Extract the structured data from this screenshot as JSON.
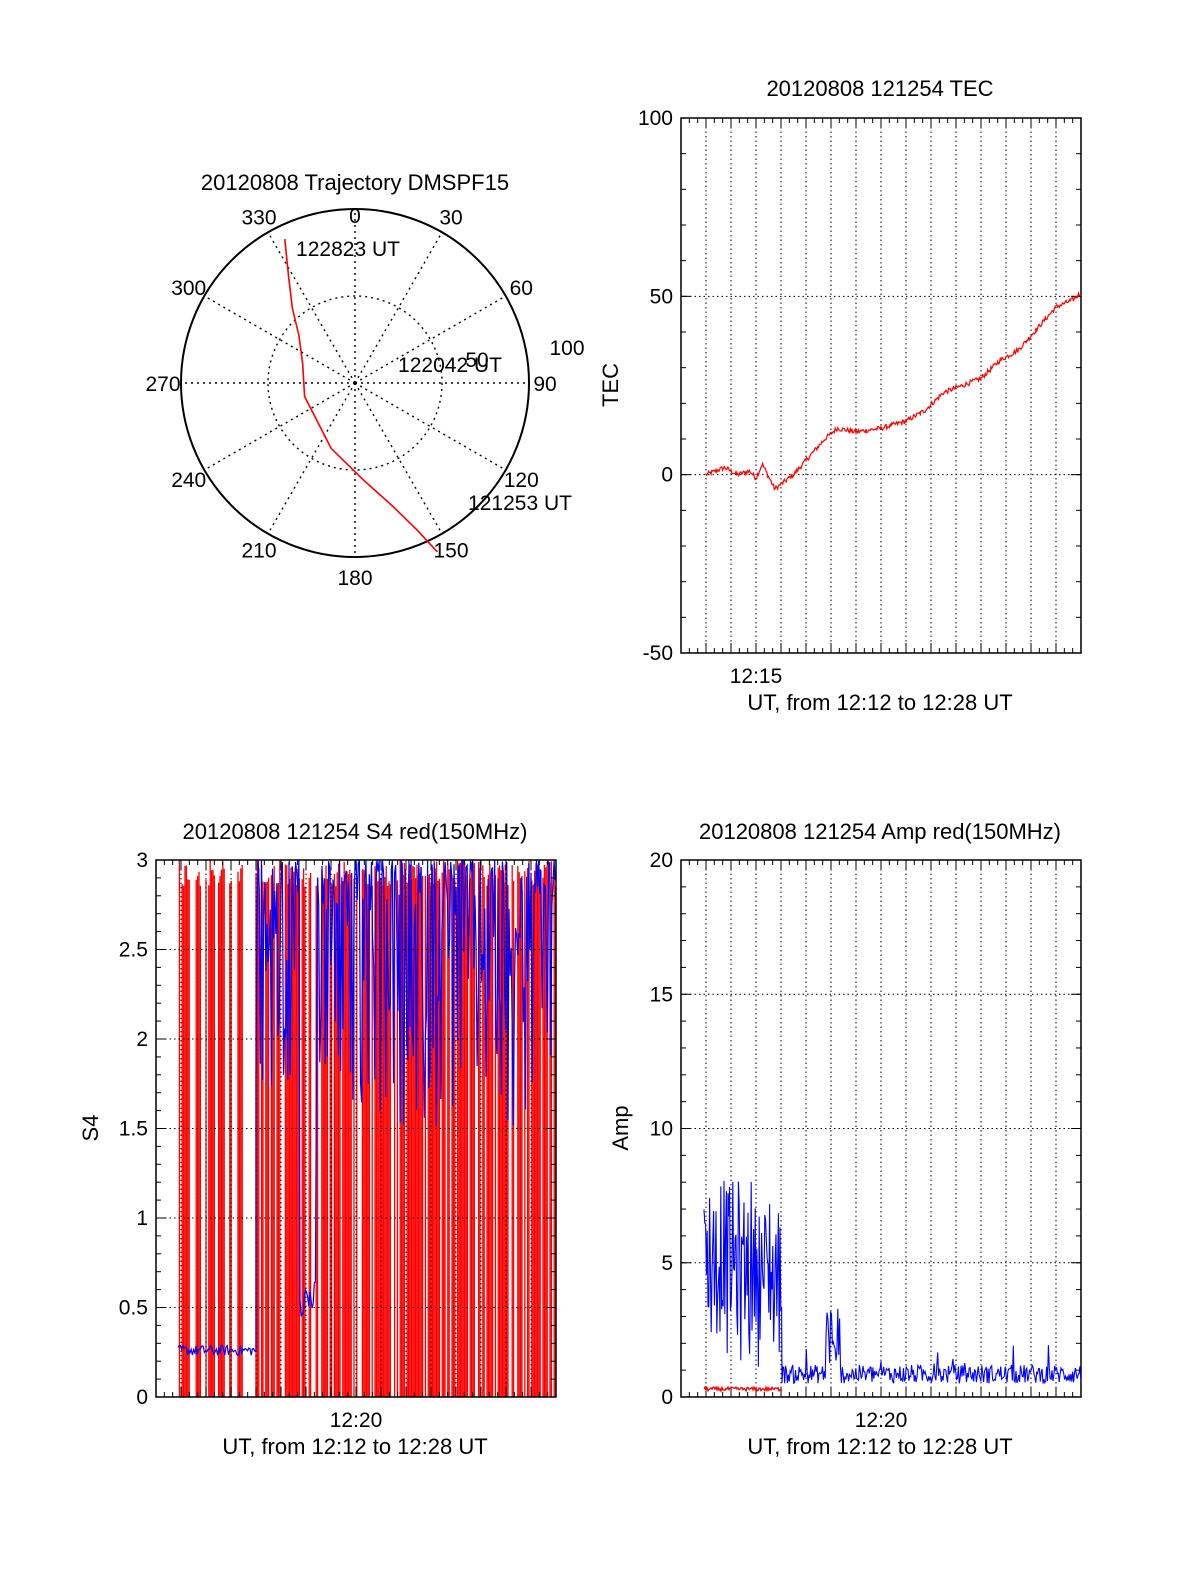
{
  "chart_data": [
    {
      "type": "polar",
      "title": "20120808 Trajectory DMSPF15",
      "angle_labels": [
        "0",
        "30",
        "60",
        "90",
        "120",
        "150",
        "180",
        "210",
        "240",
        "270",
        "300",
        "330"
      ],
      "radial_labels": [
        "50",
        "100"
      ],
      "rmax": 100,
      "grid": true,
      "series": [
        {
          "color": "#ff0000",
          "points": [
            [
              334,
              92
            ],
            [
              328,
              72
            ],
            [
              320,
              56
            ],
            [
              310,
              42
            ],
            [
              290,
              32
            ],
            [
              255,
              30
            ],
            [
              200,
              40
            ],
            [
              175,
              56
            ],
            [
              163,
              74
            ],
            [
              157,
              92
            ],
            [
              154,
              108
            ]
          ]
        }
      ],
      "annotations": [
        {
          "text": "122823 UT",
          "angle": 334,
          "r": 92
        },
        {
          "text": "122042 UT",
          "angle": 68,
          "r": 42
        },
        {
          "text": "121253 UT",
          "angle": 152,
          "r": 108
        }
      ]
    },
    {
      "type": "line",
      "title": "20120808 121254 TEC",
      "xlabel": "UT, from 12:12 to 12:28 UT",
      "ylabel": "TEC",
      "xlim": [
        "12:12",
        "12:28"
      ],
      "x_tick_labels": [
        "12:15"
      ],
      "ylim": [
        -50,
        100
      ],
      "yticks": [
        "100",
        "50",
        "0",
        "-50"
      ],
      "grid": true,
      "series": [
        {
          "color": "#ff0000",
          "x": [
            "12:13:00",
            "12:13:45",
            "12:14:15",
            "12:14:45",
            "12:15:00",
            "12:15:15",
            "12:15:45",
            "12:16:30",
            "12:17:15",
            "12:17:45",
            "12:18:15",
            "12:19:00",
            "12:20:00",
            "12:21:00",
            "12:21:45",
            "12:22:30",
            "12:23:15",
            "12:24:00",
            "12:24:45",
            "12:25:30",
            "12:26:15",
            "12:27:00",
            "12:27:40",
            "12:28:00"
          ],
          "values": [
            0,
            2,
            0,
            1,
            -1,
            3,
            -4,
            0,
            6,
            10,
            13,
            12,
            13,
            15,
            18,
            23,
            25,
            27,
            32,
            35,
            41,
            47,
            49,
            51
          ]
        }
      ]
    },
    {
      "type": "line",
      "title": "20120808 121254 S4 red(150MHz)",
      "xlabel": "UT, from 12:12 to 12:28 UT",
      "ylabel": "S4",
      "xlim": [
        "12:12",
        "12:28"
      ],
      "x_tick_labels": [
        "12:20"
      ],
      "ylim": [
        0,
        3
      ],
      "yticks": [
        "3",
        "2.5",
        "2",
        "1.5",
        "1",
        "0.5",
        "0"
      ],
      "grid": true,
      "series": [
        {
          "color": "#ff0000",
          "note_values": "dense spikes spanning 0 to 3 throughout the interval"
        },
        {
          "color": "#0000ff",
          "x": [
            "12:13:00",
            "12:14:00",
            "12:15:00",
            "12:16:00",
            "12:16:20",
            "12:17:00",
            "12:18:00",
            "12:19:00",
            "12:20:00",
            "12:21:00",
            "12:22:00",
            "12:23:00",
            "12:24:00",
            "12:25:00",
            "12:26:00",
            "12:27:00",
            "12:28:00"
          ],
          "values": [
            0.25,
            0.26,
            0.27,
            0.28,
            3,
            2.6,
            2.8,
            0.5,
            2.7,
            2.9,
            2.6,
            2.8,
            2.5,
            2.9,
            2.7,
            2.8,
            2.8
          ]
        }
      ]
    },
    {
      "type": "line",
      "title": "20120808 121254 Amp red(150MHz)",
      "xlabel": "UT, from 12:12 to 12:28 UT",
      "ylabel": "Amp",
      "xlim": [
        "12:12",
        "12:28"
      ],
      "x_tick_labels": [
        "12:20"
      ],
      "ylim": [
        0,
        20
      ],
      "yticks": [
        "20",
        "15",
        "10",
        "5",
        "0"
      ],
      "grid": true,
      "series": [
        {
          "color": "#0000ff",
          "x": [
            "12:13:00",
            "12:14:00",
            "12:15:00",
            "12:16:15",
            "12:16:20",
            "12:17:00",
            "12:18:00",
            "12:18:30",
            "12:19:00",
            "12:20:00",
            "12:22:00",
            "12:24:00",
            "12:26:00",
            "12:28:00"
          ],
          "values": [
            5,
            5.5,
            5,
            4.5,
            0.5,
            0.6,
            0.7,
            2.5,
            0.6,
            0.5,
            0.6,
            0.5,
            0.6,
            0.6
          ]
        },
        {
          "color": "#ff0000",
          "x": [
            "12:13:00",
            "12:14:00",
            "12:15:00",
            "12:16:15"
          ],
          "values": [
            0.2,
            0.25,
            0.2,
            0.2
          ]
        }
      ]
    }
  ]
}
